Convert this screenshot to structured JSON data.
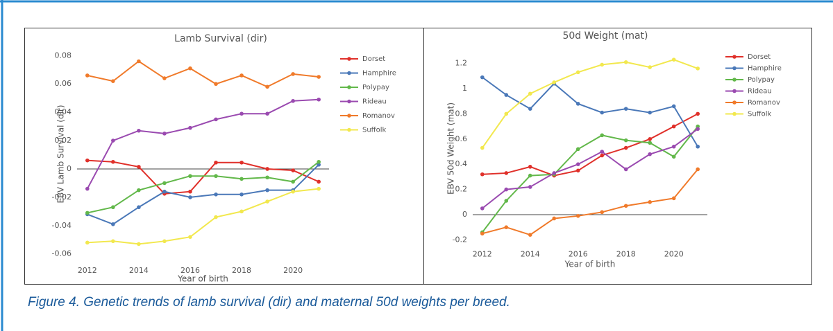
{
  "chart_data": [
    {
      "type": "line",
      "title": "Lamb Survival (dir)",
      "x_label": "Year of birth",
      "y_label": "EBV Lamb Survival (dir)",
      "x": [
        2012,
        2013,
        2014,
        2015,
        2016,
        2017,
        2018,
        2019,
        2020,
        2021
      ],
      "xlim": [
        2011.6,
        2021.4
      ],
      "xticks": [
        2012,
        2014,
        2016,
        2018,
        2020
      ],
      "ylim": [
        -0.066,
        0.087
      ],
      "yticks": [
        -0.06,
        -0.04,
        -0.02,
        0,
        0.02,
        0.04,
        0.06,
        0.08
      ],
      "zeroline": true,
      "legend": "right",
      "series": [
        {
          "name": "Dorset",
          "color": "#e0302a",
          "values": [
            0.006,
            0.005,
            0.0015,
            -0.0175,
            -0.016,
            0.0045,
            0.0045,
            0,
            -0.001,
            -0.009
          ]
        },
        {
          "name": "Hamphire",
          "color": "#4a78b8",
          "values": [
            -0.032,
            -0.039,
            -0.027,
            -0.016,
            -0.02,
            -0.018,
            -0.018,
            -0.015,
            -0.015,
            0.003
          ]
        },
        {
          "name": "Polypay",
          "color": "#62b84a",
          "values": [
            -0.031,
            -0.027,
            -0.015,
            -0.01,
            -0.005,
            -0.005,
            -0.007,
            -0.006,
            -0.009,
            0.005
          ]
        },
        {
          "name": "Rideau",
          "color": "#9a4ab0",
          "values": [
            -0.014,
            0.02,
            0.027,
            0.025,
            0.029,
            0.035,
            0.039,
            0.039,
            0.048,
            0.049
          ]
        },
        {
          "name": "Romanov",
          "color": "#f07a2a",
          "values": [
            0.066,
            0.062,
            0.076,
            0.064,
            0.071,
            0.06,
            0.066,
            0.058,
            0.067,
            0.065
          ]
        },
        {
          "name": "Suffolk",
          "color": "#f2e84e",
          "values": [
            -0.052,
            -0.051,
            -0.053,
            -0.051,
            -0.048,
            -0.034,
            -0.03,
            -0.023,
            -0.016,
            -0.014
          ]
        }
      ]
    },
    {
      "type": "line",
      "title": "50d Weight (mat)",
      "x_label": "Year of birth",
      "y_label": "EBV 50d Weight (mat)",
      "x": [
        2012,
        2013,
        2014,
        2015,
        2016,
        2017,
        2018,
        2019,
        2020,
        2021
      ],
      "xlim": [
        2011.6,
        2021.4
      ],
      "xticks": [
        2012,
        2014,
        2016,
        2018,
        2020
      ],
      "ylim": [
        -0.25,
        1.3
      ],
      "yticks": [
        -0.2,
        0,
        0.2,
        0.4,
        0.6,
        0.8,
        1,
        1.2
      ],
      "zeroline": true,
      "legend": "right",
      "series": [
        {
          "name": "Dorset",
          "color": "#e0302a",
          "values": [
            0.32,
            0.33,
            0.38,
            0.31,
            0.35,
            0.47,
            0.53,
            0.6,
            0.7,
            0.8
          ]
        },
        {
          "name": "Hamphire",
          "color": "#4a78b8",
          "values": [
            1.09,
            0.95,
            0.84,
            1.04,
            0.88,
            0.81,
            0.84,
            0.81,
            0.86,
            0.54
          ]
        },
        {
          "name": "Polypay",
          "color": "#62b84a",
          "values": [
            -0.14,
            0.11,
            0.31,
            0.32,
            0.52,
            0.63,
            0.59,
            0.57,
            0.46,
            0.7
          ]
        },
        {
          "name": "Rideau",
          "color": "#9a4ab0",
          "values": [
            0.05,
            0.2,
            0.22,
            0.33,
            0.4,
            0.5,
            0.36,
            0.48,
            0.54,
            0.68
          ]
        },
        {
          "name": "Romanov",
          "color": "#f07a2a",
          "values": [
            -0.15,
            -0.1,
            -0.16,
            -0.03,
            -0.01,
            0.02,
            0.07,
            0.1,
            0.13,
            0.36
          ]
        },
        {
          "name": "Suffolk",
          "color": "#f2e84e",
          "values": [
            0.53,
            0.8,
            0.96,
            1.05,
            1.13,
            1.19,
            1.21,
            1.17,
            1.23,
            1.16
          ]
        }
      ]
    }
  ],
  "caption": "Figure 4. Genetic trends of lamb survival (dir) and maternal 50d weights per breed."
}
